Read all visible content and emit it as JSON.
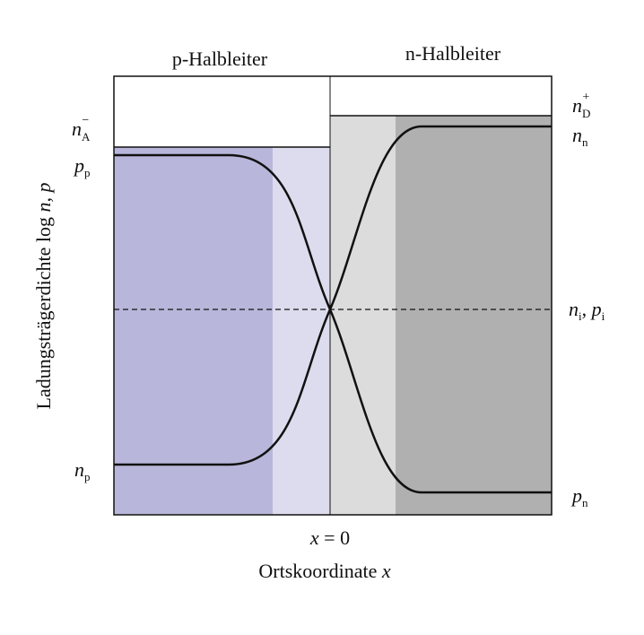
{
  "regions": {
    "p_label": "p-Halbleiter",
    "n_label": "n-Halbleiter"
  },
  "y_axis": {
    "label_text": "Ladungsträgerdichte  log",
    "label_vars": "n, p"
  },
  "x_axis": {
    "label_text": "Ortskoordinate",
    "label_var": "x",
    "origin_var": "x",
    "origin_eq": " = 0"
  },
  "left_labels": {
    "nA": {
      "base": "n",
      "sub": "A",
      "sup": "−"
    },
    "pp": {
      "base": "p",
      "sub": "p"
    },
    "np": {
      "base": "n",
      "sub": "p"
    }
  },
  "right_labels": {
    "nD": {
      "base": "n",
      "sub": "D",
      "sup": "+"
    },
    "nn": {
      "base": "n",
      "sub": "n"
    },
    "ni_pi": {
      "base1": "n",
      "sub1": "i",
      "sep": ", ",
      "base2": "p",
      "sub2": "i"
    },
    "pn": {
      "base": "p",
      "sub": "n"
    }
  },
  "colors": {
    "p_bulk": "#b8b6da",
    "p_depletion": "#dcdcee",
    "n_depletion": "#dcdcdc",
    "n_bulk": "#b0b0b0",
    "line": "#111111"
  }
}
